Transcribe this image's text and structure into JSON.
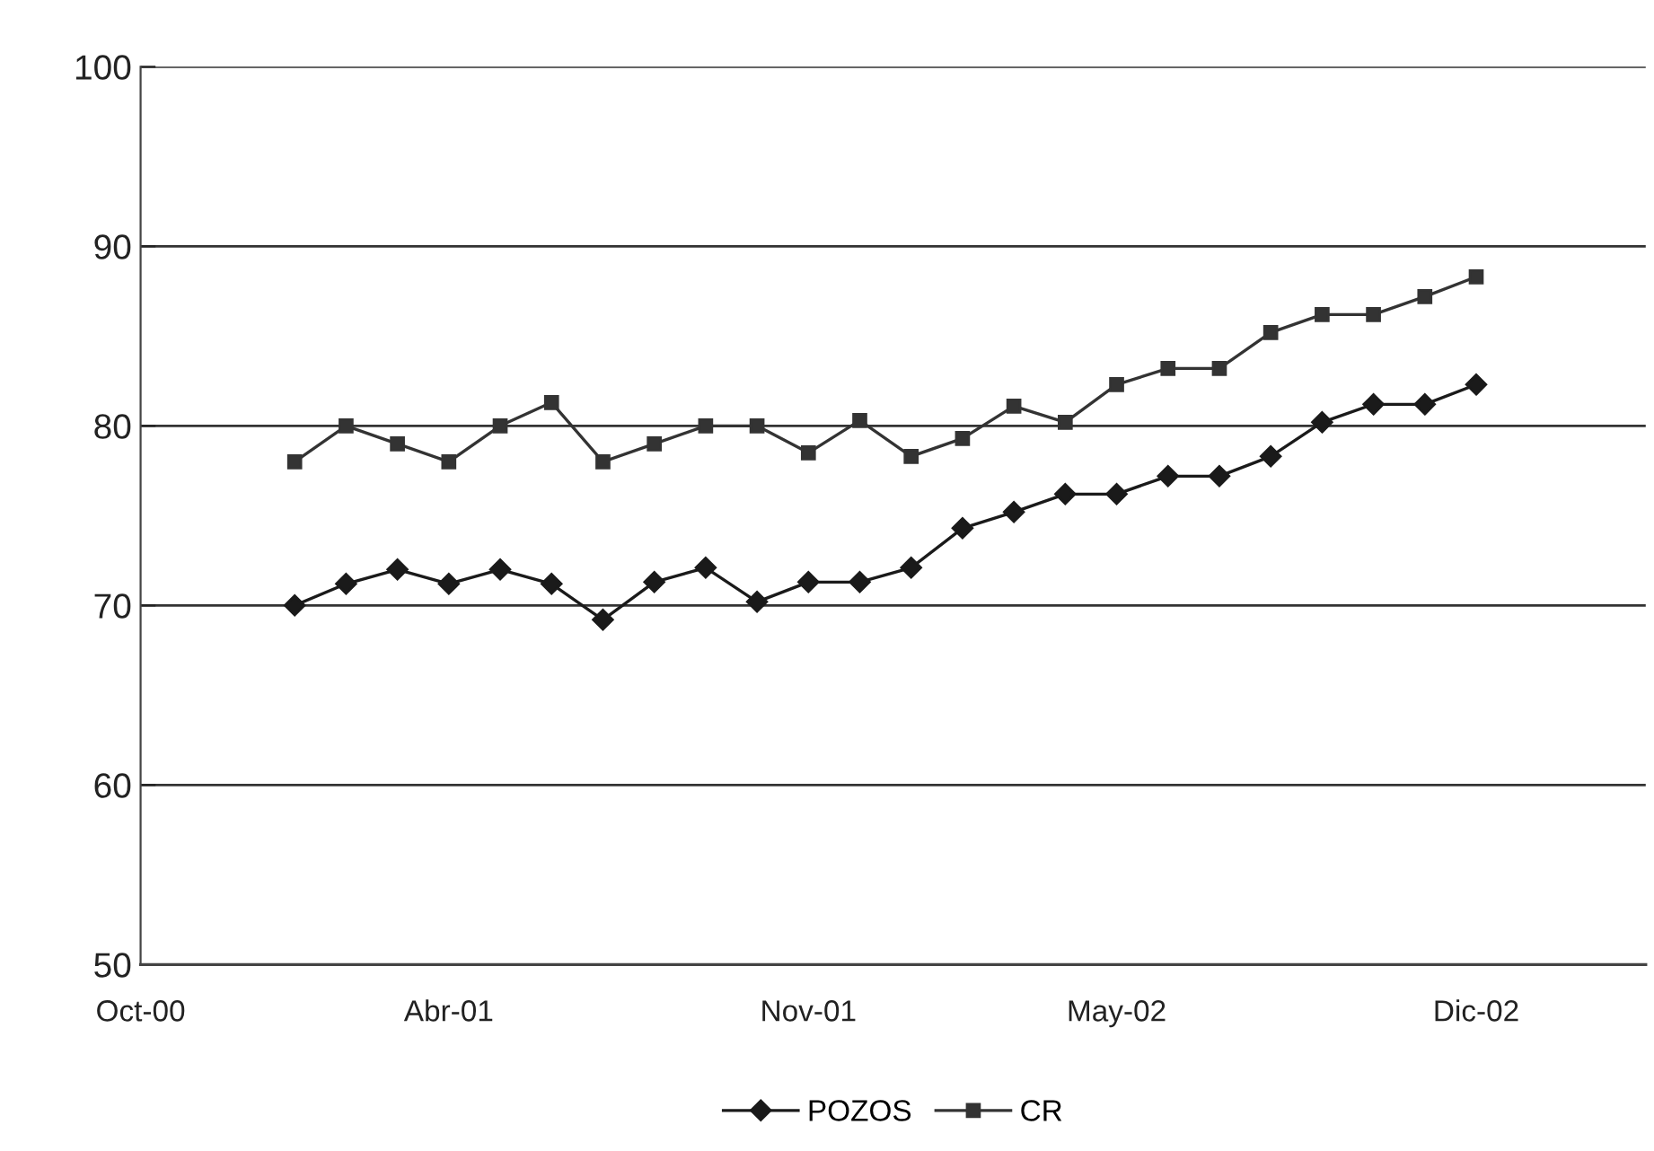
{
  "chart_data": {
    "type": "line",
    "categories": [
      "Oct-00",
      null,
      null,
      null,
      null,
      null,
      "Abr-01",
      null,
      null,
      null,
      null,
      null,
      null,
      "Nov-01",
      null,
      null,
      null,
      null,
      null,
      "May-02",
      null,
      null,
      null,
      null,
      null,
      null,
      "Dic-02",
      null,
      null,
      null
    ],
    "series": [
      {
        "name": "POZOS",
        "color": "#1a1a1a",
        "marker": "diamond",
        "values": [
          null,
          null,
          null,
          70,
          71.2,
          72,
          71.2,
          72,
          71.2,
          69.2,
          71.3,
          72.1,
          70.2,
          71.3,
          71.3,
          72.1,
          74.3,
          75.2,
          76.2,
          76.2,
          77.2,
          77.2,
          78.3,
          80.2,
          81.2,
          81.2,
          82.3,
          null,
          null,
          null
        ]
      },
      {
        "name": "CR",
        "color": "#333333",
        "marker": "square",
        "values": [
          null,
          null,
          null,
          78,
          80,
          79,
          78,
          80,
          81.3,
          78,
          79,
          80,
          80,
          78.5,
          80.3,
          78.3,
          79.3,
          81.1,
          80.2,
          82.3,
          83.2,
          83.2,
          85.2,
          86.2,
          86.2,
          87.2,
          88.3,
          null,
          null,
          null
        ]
      }
    ],
    "ylim": [
      50,
      100
    ],
    "yticks": [
      50,
      60,
      70,
      80,
      90,
      100
    ],
    "grid": "y",
    "legend": "bottom",
    "line_style": "solid"
  }
}
